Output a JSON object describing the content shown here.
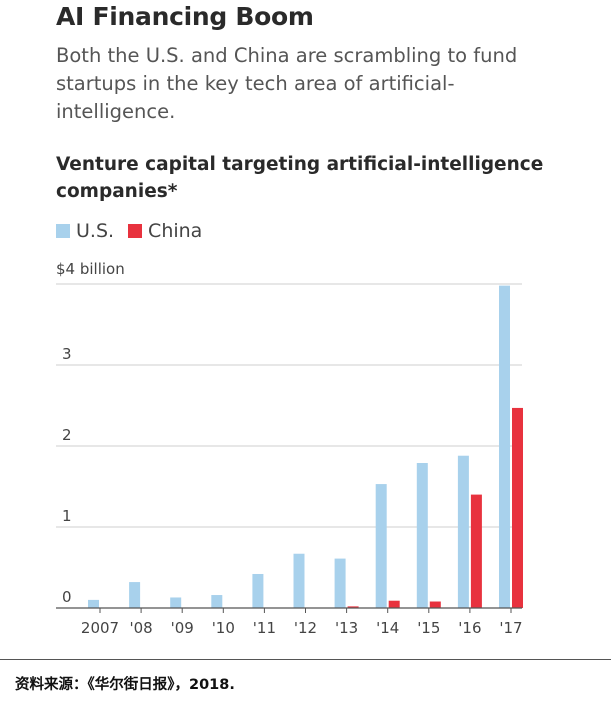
{
  "headline": "AI Financing Boom",
  "dek": "Both the U.S. and China are scrambling to fund startups in the key tech area of artificial-intelligence.",
  "source": "资料来源：《华尔街日报》，2018.",
  "colors": {
    "us": "#a8d1ec",
    "china": "#e8323e",
    "grid": "#cfcfcf",
    "axis": "#555555"
  },
  "chart_data": {
    "type": "bar",
    "title": "Venture capital targeting artificial-intelligence companies*",
    "unit_label": "$4 billion",
    "categories": [
      "2007",
      "'08",
      "'09",
      "'10",
      "'11",
      "'12",
      "'13",
      "'14",
      "'15",
      "'16",
      "'17"
    ],
    "series": [
      {
        "name": "U.S.",
        "values": [
          0.1,
          0.32,
          0.13,
          0.16,
          0.42,
          0.67,
          0.61,
          1.53,
          1.79,
          1.88,
          3.98
        ]
      },
      {
        "name": "China",
        "values": [
          0,
          0,
          0,
          0,
          0,
          0,
          0.02,
          0.09,
          0.08,
          1.4,
          2.47
        ]
      }
    ],
    "yticks": [
      "0",
      "1",
      "2",
      "3"
    ],
    "ylim": [
      0,
      4
    ],
    "grid": true,
    "legend": "top-left"
  }
}
